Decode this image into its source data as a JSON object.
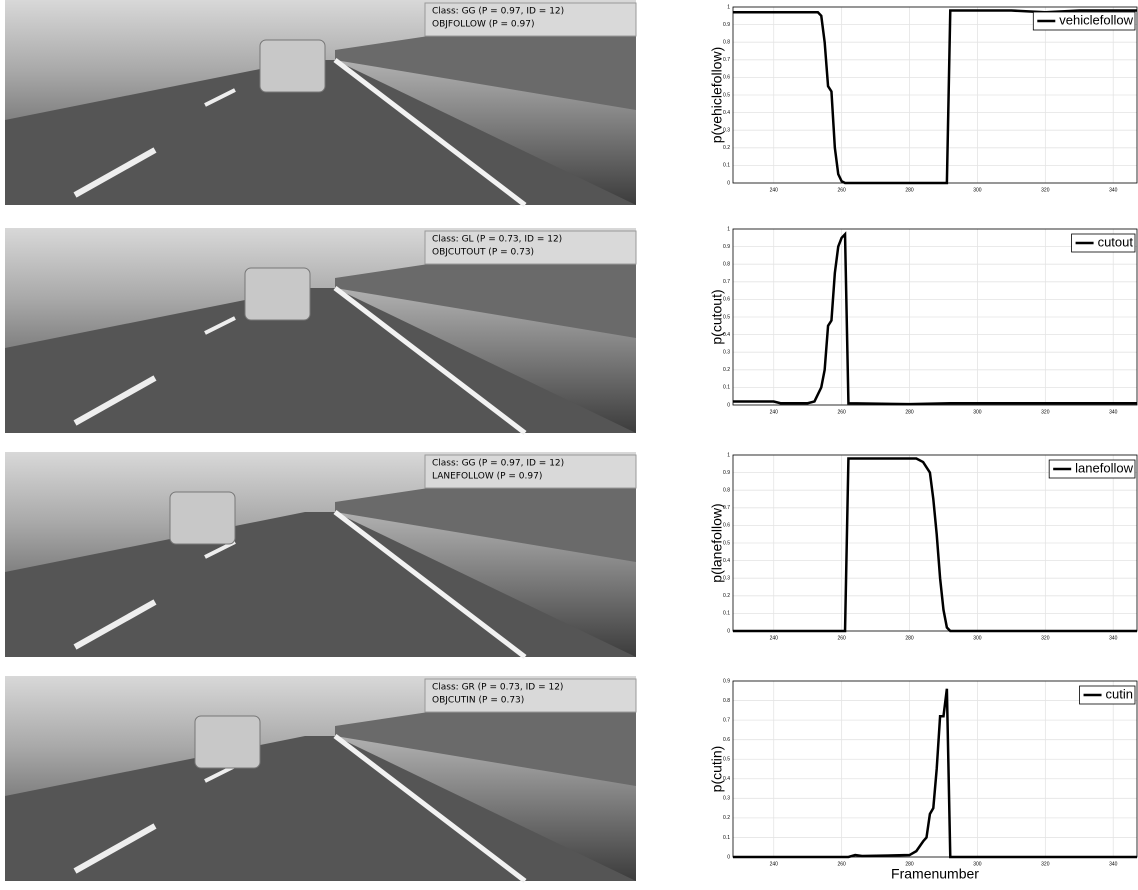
{
  "frames": [
    {
      "lines": [
        "Class: GG (P = 0.97, ID = 12)",
        "OBJFOLLOW (P = 0.97)"
      ]
    },
    {
      "lines": [
        "Class: GL (P = 0.73, ID = 12)",
        "OBJCUTOUT (P = 0.73)"
      ]
    },
    {
      "lines": [
        "Class: GG (P = 0.97, ID = 12)",
        "LANEFOLLOW (P = 0.97)"
      ]
    },
    {
      "lines": [
        "Class: GR (P = 0.73, ID = 12)",
        "OBJCUTIN (P = 0.73)"
      ]
    }
  ],
  "chart_data": [
    {
      "type": "line",
      "ylabel": "p(vehiclefollow)",
      "x": [
        228,
        240,
        250,
        253,
        254,
        255,
        256,
        257,
        258,
        259,
        260,
        261,
        270,
        280,
        291,
        292,
        300,
        310,
        320,
        330,
        347
      ],
      "series": [
        {
          "name": "vehiclefollow",
          "color": "#000000",
          "values": [
            0.97,
            0.97,
            0.97,
            0.97,
            0.95,
            0.8,
            0.55,
            0.52,
            0.2,
            0.05,
            0.01,
            0,
            0,
            0,
            0,
            0.98,
            0.98,
            0.98,
            0.97,
            0.98,
            0.98
          ]
        }
      ],
      "xlim": [
        228,
        347
      ],
      "ylim": [
        0,
        1
      ],
      "xticks": [
        240,
        260,
        280,
        300,
        320,
        340
      ],
      "yticks": [
        0,
        0.1,
        0.2,
        0.3,
        0.4,
        0.5,
        0.6,
        0.7,
        0.8,
        0.9,
        1
      ],
      "grid": true,
      "legend": "upper right"
    },
    {
      "type": "line",
      "ylabel": "p(cutout)",
      "x": [
        228,
        240,
        242,
        250,
        252,
        254,
        255,
        256,
        257,
        258,
        259,
        260,
        261,
        262,
        280,
        292,
        320,
        347
      ],
      "series": [
        {
          "name": "cutout",
          "color": "#000000",
          "values": [
            0.02,
            0.02,
            0.01,
            0.01,
            0.02,
            0.1,
            0.2,
            0.45,
            0.48,
            0.75,
            0.9,
            0.95,
            0.97,
            0.01,
            0.005,
            0.01,
            0.01,
            0.01
          ]
        }
      ],
      "xlim": [
        228,
        347
      ],
      "ylim": [
        0,
        1
      ],
      "xticks": [
        240,
        260,
        280,
        300,
        320,
        340
      ],
      "yticks": [
        0,
        0.1,
        0.2,
        0.3,
        0.4,
        0.5,
        0.6,
        0.7,
        0.8,
        0.9,
        1
      ],
      "grid": true,
      "legend": "upper right"
    },
    {
      "type": "line",
      "ylabel": "p(lanefollow)",
      "x": [
        228,
        261,
        262,
        270,
        282,
        284,
        286,
        287,
        288,
        289,
        290,
        291,
        292,
        347
      ],
      "series": [
        {
          "name": "lanefollow",
          "color": "#000000",
          "values": [
            0,
            0,
            0.98,
            0.98,
            0.98,
            0.96,
            0.9,
            0.75,
            0.55,
            0.3,
            0.12,
            0.02,
            0,
            0
          ]
        }
      ],
      "xlim": [
        228,
        347
      ],
      "ylim": [
        0,
        1
      ],
      "xticks": [
        240,
        260,
        280,
        300,
        320,
        340
      ],
      "yticks": [
        0,
        0.1,
        0.2,
        0.3,
        0.4,
        0.5,
        0.6,
        0.7,
        0.8,
        0.9,
        1
      ],
      "grid": true,
      "legend": "upper right"
    },
    {
      "type": "line",
      "ylabel": "p(cutin)",
      "xlabel": "Framenumber",
      "x": [
        228,
        262,
        264,
        266,
        280,
        282,
        284,
        285,
        286,
        287,
        288,
        289,
        290,
        291,
        292,
        347
      ],
      "series": [
        {
          "name": "cutin",
          "color": "#000000",
          "values": [
            0,
            0,
            0.01,
            0.005,
            0.01,
            0.03,
            0.08,
            0.1,
            0.22,
            0.25,
            0.45,
            0.72,
            0.72,
            0.86,
            0,
            0
          ]
        }
      ],
      "xlim": [
        228,
        347
      ],
      "ylim": [
        0,
        0.9
      ],
      "xticks": [
        240,
        260,
        280,
        300,
        320,
        340
      ],
      "yticks": [
        0,
        0.1,
        0.2,
        0.3,
        0.4,
        0.5,
        0.6,
        0.7,
        0.8,
        0.9
      ],
      "grid": true,
      "legend": "upper right"
    }
  ]
}
